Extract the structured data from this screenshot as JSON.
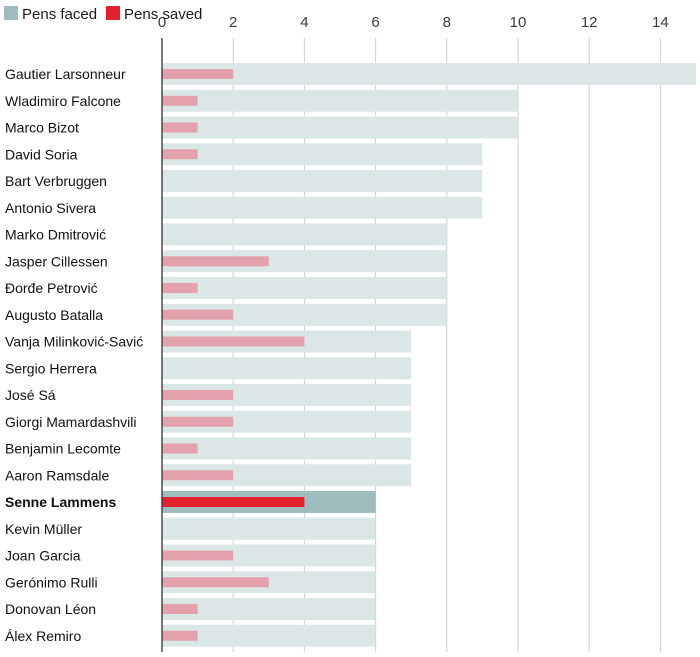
{
  "chart_data": {
    "type": "bar",
    "orientation": "horizontal",
    "legend": [
      {
        "name": "Pens faced",
        "color": "#9fbcbf"
      },
      {
        "name": "Pens saved",
        "color": "#e3202b"
      }
    ],
    "xticks": [
      "0",
      "2",
      "4",
      "6",
      "8",
      "10",
      "12",
      "14"
    ],
    "xlim": [
      0,
      15
    ],
    "highlight": "Senne Lammens",
    "colors": {
      "faced": "#dbe6e7",
      "faced_highlight": "#9fbcbf",
      "saved": "#e3a2ab",
      "saved_highlight": "#e3202b",
      "gridline": "#cfcfcf",
      "axis": "#333333"
    },
    "categories": [
      "Gautier Larsonneur",
      "Wladimiro Falcone",
      "Marco Bizot",
      "David Soria",
      "Bart Verbruggen",
      "Antonio Sivera",
      "Marko Dmitrović",
      "Jasper Cillessen",
      "Đorđe Petrović",
      "Augusto Batalla",
      "Vanja Milinković-Savić",
      "Sergio Herrera",
      "José Sá",
      "Giorgi Mamardashvili",
      "Benjamin Lecomte",
      "Aaron Ramsdale",
      "Senne Lammens",
      "Kevin Müller",
      "Joan Garcia",
      "Gerónimo Rulli",
      "Donovan Léon",
      "Álex Remiro"
    ],
    "series": [
      {
        "name": "Pens faced",
        "values": [
          15,
          10,
          10,
          9,
          9,
          9,
          8,
          8,
          8,
          8,
          7,
          7,
          7,
          7,
          7,
          7,
          6,
          6,
          6,
          6,
          6,
          6
        ]
      },
      {
        "name": "Pens saved",
        "values": [
          2,
          1,
          1,
          1,
          0,
          0,
          0,
          3,
          1,
          2,
          4,
          0,
          2,
          2,
          1,
          2,
          4,
          0,
          2,
          3,
          1,
          1
        ]
      }
    ]
  }
}
